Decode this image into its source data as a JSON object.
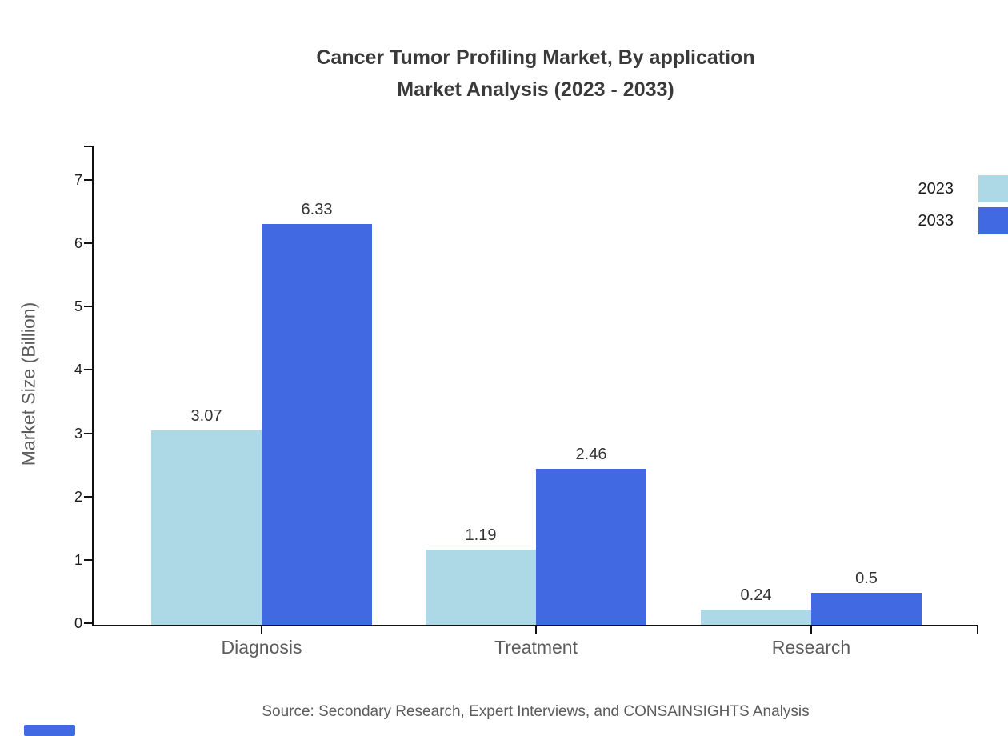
{
  "title": {
    "line1": "Cancer Tumor Profiling Market, By application",
    "line2": "Market Analysis (2023 - 2033)"
  },
  "source_note": "Source: Secondary Research, Expert Interviews, and CONSAINSIGHTS Analysis",
  "chart_data": {
    "type": "bar",
    "title": "Cancer Tumor Profiling Market, By application Market Analysis (2023 - 2033)",
    "categories": [
      "Diagnosis",
      "Treatment",
      "Research"
    ],
    "series": [
      {
        "name": "2023",
        "color": "#ADD8E6",
        "values": [
          3.07,
          1.19,
          0.24
        ]
      },
      {
        "name": "2033",
        "color": "#4169E1",
        "values": [
          6.33,
          2.46,
          0.5
        ]
      }
    ],
    "xlabel": "",
    "ylabel": "Market Size (Billion)",
    "ylim": [
      0,
      7.6
    ],
    "yticks": [
      0,
      1,
      2,
      3,
      4,
      5,
      6,
      7
    ],
    "grid": false,
    "legend_position": "top-right",
    "value_labels_shown": true
  },
  "colors": {
    "series_2023": "#ADD8E6",
    "series_2033": "#4169E1",
    "title_text": "#3a3a3a",
    "axis": "#111111",
    "muted_text": "#5c5c5c",
    "value_label_text": "#333333",
    "brand_mark": "#4169E1",
    "background": "#ffffff"
  }
}
